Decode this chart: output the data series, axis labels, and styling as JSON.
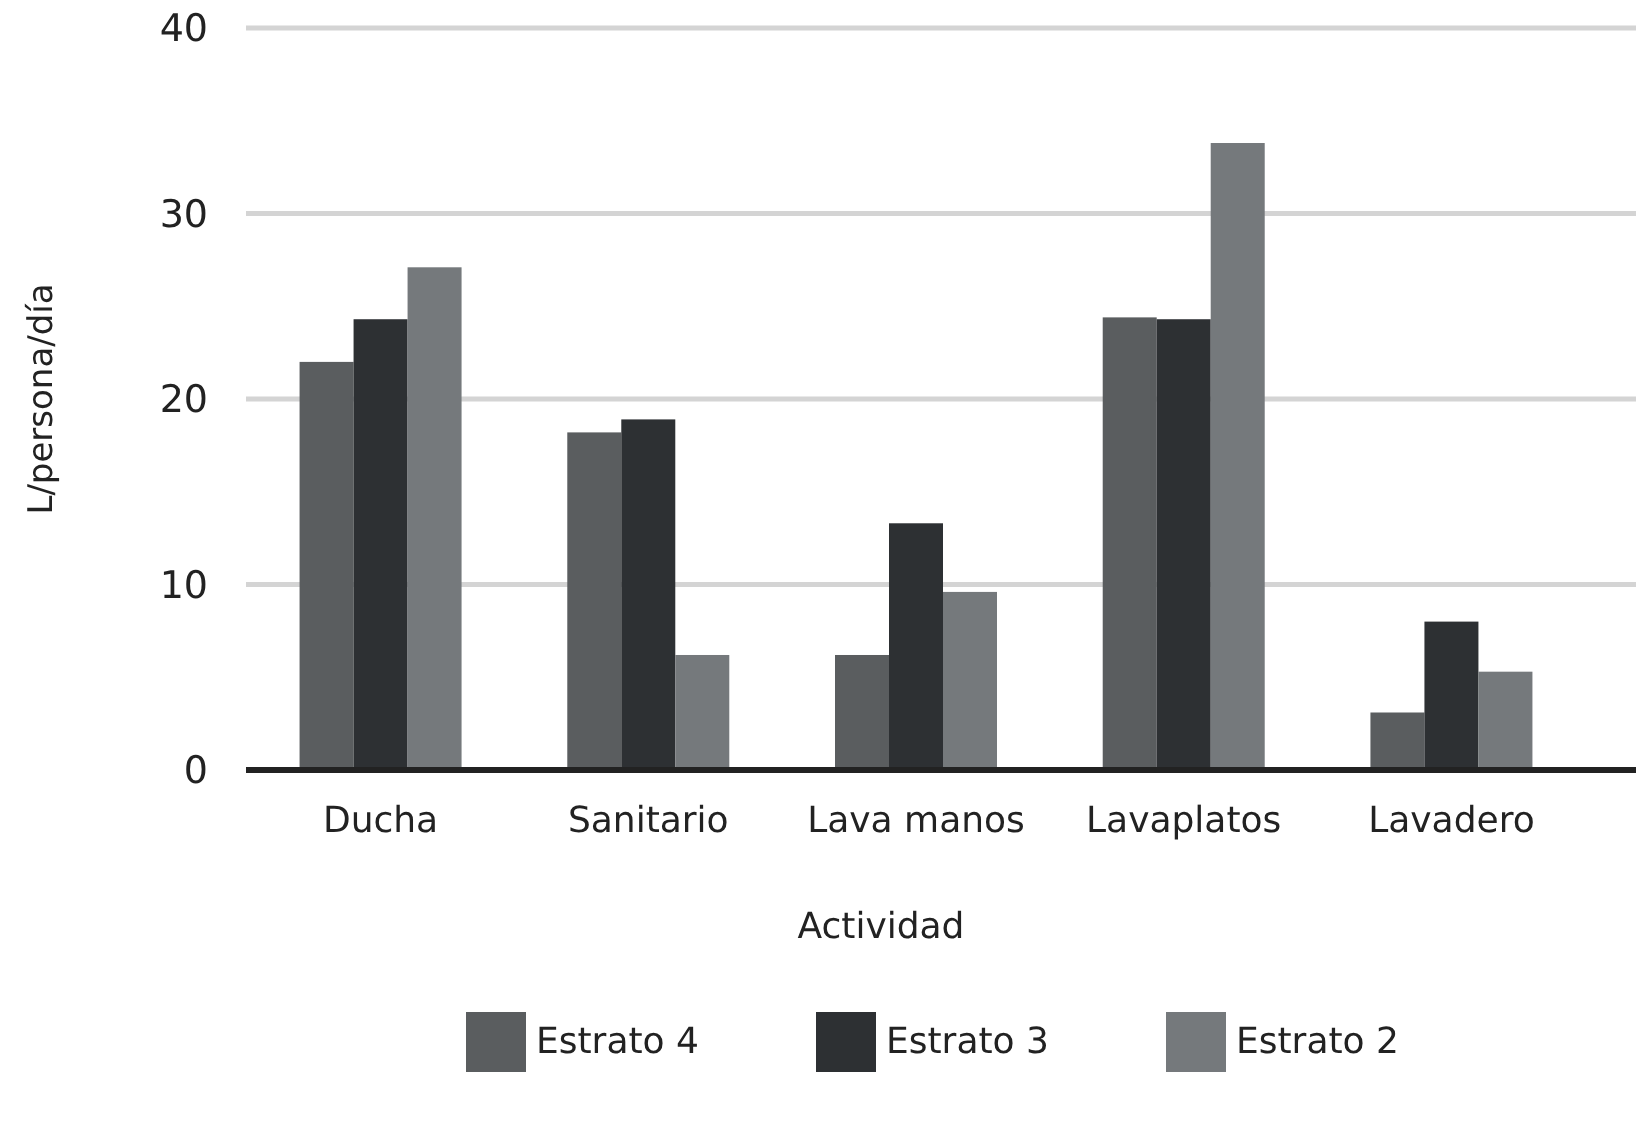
{
  "chart_data": {
    "type": "bar",
    "xlabel": "Actividad",
    "ylabel": "L/persona/día",
    "categories": [
      "Ducha",
      "Sanitario",
      "Lava manos",
      "Lavaplatos",
      "Lavadero"
    ],
    "series": [
      {
        "name": "Estrato 4",
        "color": "#5a5d5f",
        "values": [
          22,
          18.2,
          6.2,
          24.4,
          3.1
        ]
      },
      {
        "name": "Estrato 3",
        "color": "#2d3033",
        "values": [
          24.3,
          18.9,
          13.3,
          24.3,
          8
        ]
      },
      {
        "name": "Estrato 2",
        "color": "#75797c",
        "values": [
          27.1,
          6.2,
          9.6,
          33.8,
          5.3
        ]
      }
    ],
    "ylim": [
      0,
      40
    ],
    "yticks": [
      0,
      10,
      20,
      30,
      40
    ],
    "grid": "y",
    "legend": "bottom"
  }
}
